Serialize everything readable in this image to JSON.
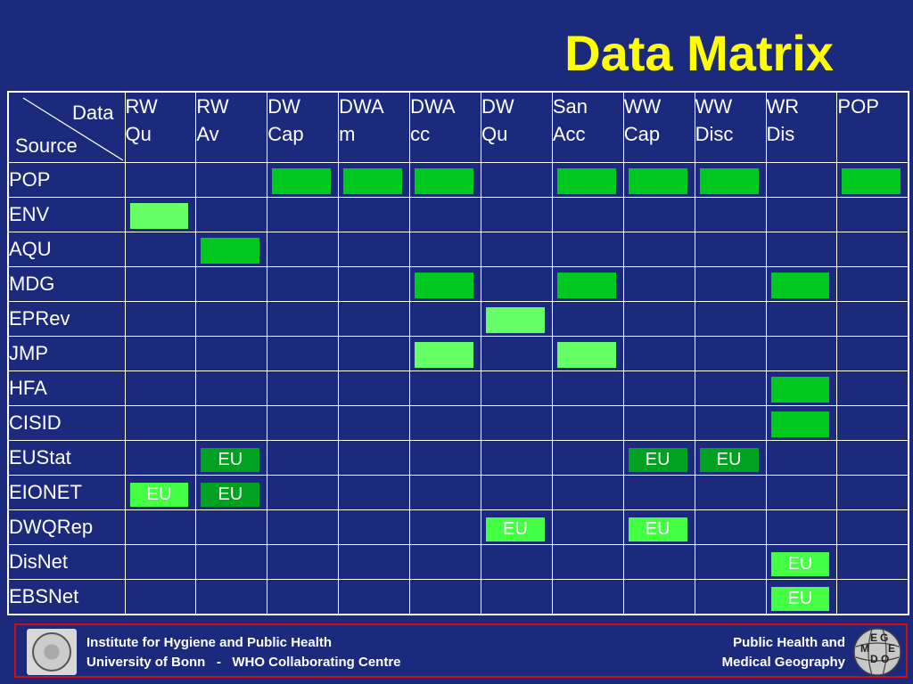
{
  "title": "Data Matrix",
  "corner": {
    "top_label": "Data",
    "bottom_label": "Source"
  },
  "columns": [
    [
      "RW",
      "Qu"
    ],
    [
      "RW",
      "Av"
    ],
    [
      "DW",
      "Cap"
    ],
    [
      "DWA",
      "m"
    ],
    [
      "DWA",
      "cc"
    ],
    [
      "DW",
      "Qu"
    ],
    [
      "San",
      "Acc"
    ],
    [
      "WW",
      "Cap"
    ],
    [
      "WW",
      "Disc"
    ],
    [
      "WR",
      "Dis"
    ],
    [
      "POP",
      ""
    ]
  ],
  "rows": [
    {
      "source": "POP",
      "cells": [
        "",
        "",
        "dark",
        "dark",
        "dark",
        "",
        "dark",
        "dark",
        "dark",
        "",
        "dark"
      ]
    },
    {
      "source": "ENV",
      "cells": [
        "light",
        "",
        "",
        "",
        "",
        "",
        "",
        "",
        "",
        "",
        ""
      ]
    },
    {
      "source": "AQU",
      "cells": [
        "",
        "dark",
        "",
        "",
        "",
        "",
        "",
        "",
        "",
        "",
        ""
      ]
    },
    {
      "source": "MDG",
      "cells": [
        "",
        "",
        "",
        "",
        "dark",
        "",
        "dark",
        "",
        "",
        "dark",
        ""
      ]
    },
    {
      "source": "EPRev",
      "cells": [
        "",
        "",
        "",
        "",
        "",
        "light",
        "",
        "",
        "",
        "",
        ""
      ]
    },
    {
      "source": "JMP",
      "cells": [
        "",
        "",
        "",
        "",
        "light",
        "",
        "light",
        "",
        "",
        "",
        ""
      ]
    },
    {
      "source": "HFA",
      "cells": [
        "",
        "",
        "",
        "",
        "",
        "",
        "",
        "",
        "",
        "dark",
        ""
      ]
    },
    {
      "source": "CISID",
      "cells": [
        "",
        "",
        "",
        "",
        "",
        "",
        "",
        "",
        "",
        "dark",
        ""
      ]
    },
    {
      "source": "EUStat",
      "cells": [
        "",
        "eu-dark",
        "",
        "",
        "",
        "",
        "",
        "eu-dark",
        "eu-dark",
        "",
        ""
      ]
    },
    {
      "source": "EIONET",
      "cells": [
        "eu-light",
        "eu-dark",
        "",
        "",
        "",
        "",
        "",
        "",
        "",
        "",
        ""
      ]
    },
    {
      "source": "DWQRep",
      "cells": [
        "",
        "",
        "",
        "",
        "",
        "eu-light",
        "",
        "eu-light",
        "",
        "",
        ""
      ]
    },
    {
      "source": "DisNet",
      "cells": [
        "",
        "",
        "",
        "",
        "",
        "",
        "",
        "",
        "",
        "eu-light",
        ""
      ]
    },
    {
      "source": "EBSNet",
      "cells": [
        "",
        "",
        "",
        "",
        "",
        "",
        "",
        "",
        "",
        "eu-light",
        ""
      ]
    }
  ],
  "marker_text": {
    "eu": "EU"
  },
  "colors": {
    "background": "#1c2a7e",
    "title": "#ffff00",
    "dark_green": "#00c81e",
    "light_green": "#66ff66",
    "footer_border": "#d01010"
  },
  "footer": {
    "left_line1": "Institute for Hygiene and Public Health",
    "left_line2": "University of Bonn   -   WHO Collaborating Centre",
    "right_line1": "Public Health and",
    "right_line2": "Medical Geography",
    "logo_right_letters": [
      "G",
      "E",
      "O",
      "M",
      "E",
      "D"
    ]
  }
}
